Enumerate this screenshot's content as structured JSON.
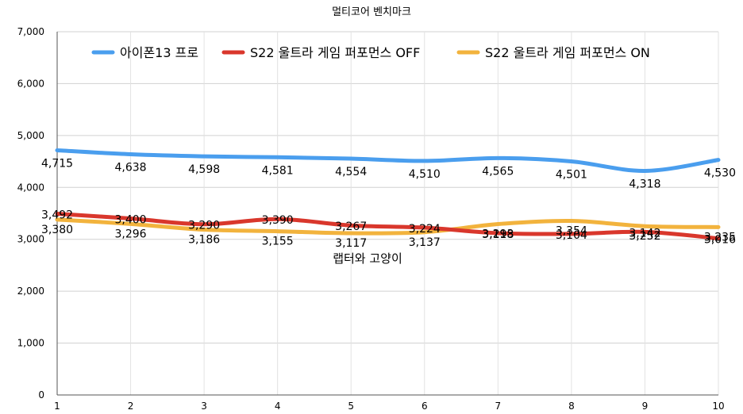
{
  "chart_data": {
    "type": "line",
    "title": "멀티코어 벤치마크",
    "xlabel": "",
    "ylabel": "",
    "x": [
      1,
      2,
      3,
      4,
      5,
      6,
      7,
      8,
      9,
      10
    ],
    "ylim": [
      0,
      7000
    ],
    "yticks": [
      "0",
      "1,000",
      "2,000",
      "3,000",
      "4,000",
      "5,000",
      "6,000",
      "7,000"
    ],
    "grid": true,
    "legend_position": "top",
    "annotation": "랩터와 고양이",
    "series": [
      {
        "name": "아이폰13 프로",
        "color": "#4A9EEE",
        "values": [
          4715,
          4638,
          4598,
          4581,
          4554,
          4510,
          4565,
          4501,
          4318,
          4530
        ],
        "labels": [
          "4,715",
          "4,638",
          "4,598",
          "4,581",
          "4,554",
          "4,510",
          "4,565",
          "4,501",
          "4,318",
          "4,530"
        ]
      },
      {
        "name": "S22 울트라 게임 퍼포먼스 OFF",
        "color": "#D9372C",
        "values": [
          3492,
          3400,
          3290,
          3390,
          3267,
          3224,
          3118,
          3104,
          3142,
          3016
        ],
        "labels": [
          "3,492",
          "3,400",
          "3,290",
          "3,390",
          "3,267",
          "3,224",
          "3,118",
          "3,104",
          "3,142",
          "3,016"
        ]
      },
      {
        "name": "S22 울트라 게임 퍼포먼스 ON",
        "color": "#F2B33D",
        "values": [
          3380,
          3296,
          3186,
          3155,
          3117,
          3137,
          3293,
          3354,
          3252,
          3235
        ],
        "labels": [
          "3,380",
          "3,296",
          "3,186",
          "3,155",
          "3,117",
          "3,137",
          "3,293",
          "3,354",
          "3,252",
          "3,235"
        ]
      }
    ]
  }
}
